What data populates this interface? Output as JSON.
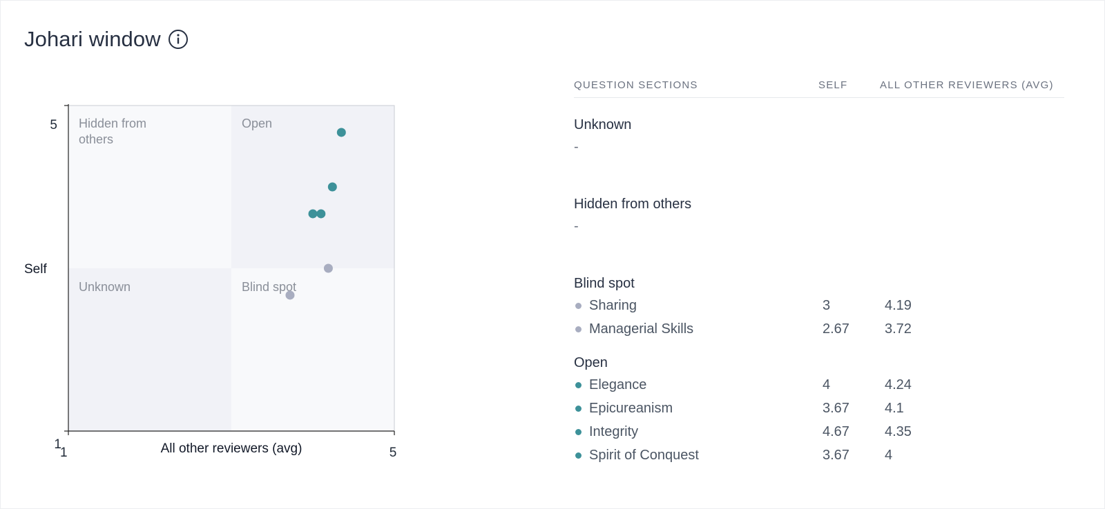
{
  "header": {
    "title": "Johari window",
    "info_icon": "info-icon"
  },
  "colors": {
    "open": "#3d9199",
    "blind": "#a8adc0",
    "quadrant_light": "#f8f9fb",
    "quadrant_dark": "#f1f2f7",
    "axis": "#222222",
    "quadrant_label": "#8a8f99"
  },
  "chart_data": {
    "type": "scatter",
    "title": "",
    "xlabel": "All other reviewers (avg)",
    "ylabel": "Self",
    "xlim": [
      1,
      5
    ],
    "ylim": [
      1,
      5
    ],
    "x_ticks": [
      "1",
      "5"
    ],
    "y_ticks": [
      "1",
      "5"
    ],
    "grid": false,
    "quadrants": [
      {
        "label": "Hidden from others",
        "label_lines": [
          "Hidden from",
          "others"
        ],
        "position": "top-left"
      },
      {
        "label": "Open",
        "label_lines": [
          "Open"
        ],
        "position": "top-right"
      },
      {
        "label": "Unknown",
        "label_lines": [
          "Unknown"
        ],
        "position": "bottom-left"
      },
      {
        "label": "Blind spot",
        "label_lines": [
          "Blind spot"
        ],
        "position": "bottom-right"
      }
    ],
    "series": [
      {
        "group": "open",
        "points": [
          {
            "label": "Elegance",
            "x": 4.24,
            "y": 4
          },
          {
            "label": "Epicureanism",
            "x": 4.1,
            "y": 3.67
          },
          {
            "label": "Integrity",
            "x": 4.35,
            "y": 4.67
          },
          {
            "label": "Spirit of Conquest",
            "x": 4,
            "y": 3.67
          }
        ]
      },
      {
        "group": "blind",
        "points": [
          {
            "label": "Sharing",
            "x": 4.19,
            "y": 3
          },
          {
            "label": "Managerial Skills",
            "x": 3.72,
            "y": 2.67
          }
        ]
      }
    ]
  },
  "table": {
    "headers": {
      "sections": "QUESTION SECTIONS",
      "self": "SELF",
      "others": "ALL OTHER REVIEWERS (AVG)"
    },
    "sections": [
      {
        "title": "Unknown",
        "empty": "-",
        "rows": []
      },
      {
        "title": "Hidden from others",
        "empty": "-",
        "rows": []
      },
      {
        "title": "Blind spot",
        "empty": "",
        "rows": [
          {
            "name": "Sharing",
            "self": "3",
            "others": "4.19",
            "group": "blind"
          },
          {
            "name": "Managerial Skills",
            "self": "2.67",
            "others": "3.72",
            "group": "blind"
          }
        ]
      },
      {
        "title": "Open",
        "empty": "",
        "rows": [
          {
            "name": "Elegance",
            "self": "4",
            "others": "4.24",
            "group": "open"
          },
          {
            "name": "Epicureanism",
            "self": "3.67",
            "others": "4.1",
            "group": "open"
          },
          {
            "name": "Integrity",
            "self": "4.67",
            "others": "4.35",
            "group": "open"
          },
          {
            "name": "Spirit of Conquest",
            "self": "3.67",
            "others": "4",
            "group": "open"
          }
        ]
      }
    ]
  }
}
